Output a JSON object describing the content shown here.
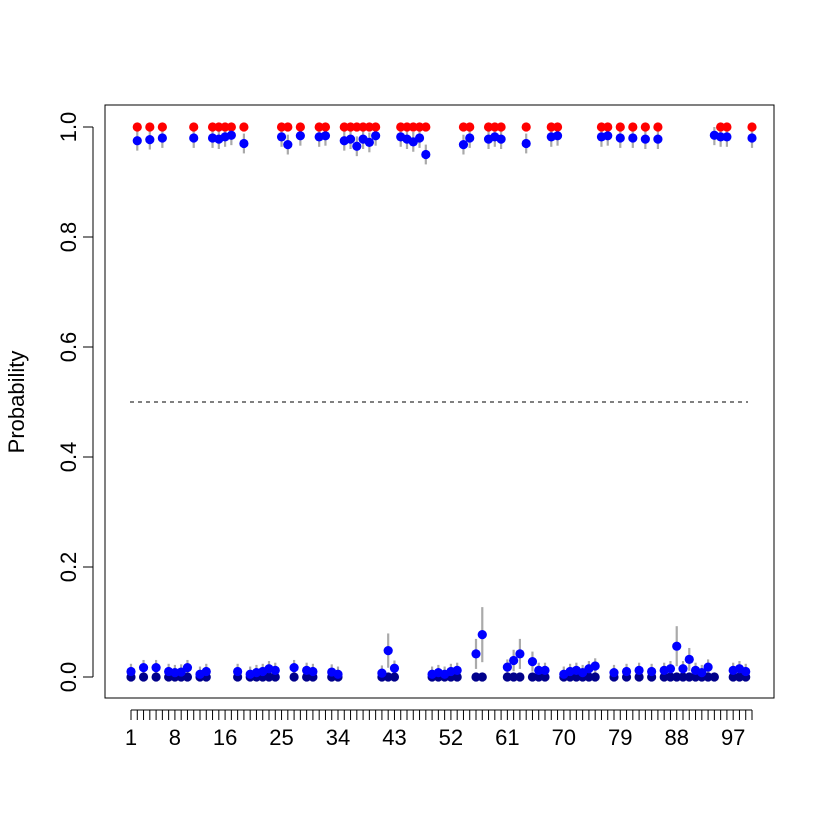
{
  "chart_data": {
    "type": "scatter",
    "title": "",
    "xlabel": "",
    "ylabel": "Probability",
    "xlim": [
      0.5,
      100.5
    ],
    "ylim": [
      -0.04,
      1.04
    ],
    "y_ticks": [
      0.0,
      0.2,
      0.4,
      0.6,
      0.8,
      1.0
    ],
    "y_tick_labels": [
      "0.0",
      "0.2",
      "0.4",
      "0.6",
      "0.8",
      "1.0"
    ],
    "x_tick_positions": [
      1,
      8,
      16,
      25,
      34,
      43,
      52,
      61,
      70,
      79,
      88,
      97
    ],
    "x_tick_labels": [
      "1",
      "8",
      "16",
      "25",
      "34",
      "43",
      "52",
      "61",
      "70",
      "79",
      "88",
      "97"
    ],
    "n_items": 100,
    "threshold": 0.5,
    "grid": false,
    "colors": {
      "truth": "#ff0000",
      "truth_zero": "#00008b",
      "estimate": "#0000ff",
      "interval": "#aaaaaa",
      "threshold_line": "#000000"
    },
    "series": [
      {
        "x": [
          1,
          2,
          3,
          4,
          5,
          6,
          7,
          8,
          9,
          10,
          11,
          12,
          13,
          14,
          15,
          16,
          17,
          18,
          19,
          20,
          21,
          22,
          23,
          24,
          25,
          26,
          27,
          28,
          29,
          30,
          31,
          32,
          33,
          34,
          35,
          36,
          37,
          38,
          39,
          40,
          41,
          42,
          43,
          44,
          45,
          46,
          47,
          48,
          49,
          50,
          51,
          52,
          53,
          54,
          55,
          56,
          57,
          58,
          59,
          60,
          61,
          62,
          63,
          64,
          65,
          66,
          67,
          68,
          69,
          70,
          71,
          72,
          73,
          74,
          75,
          76,
          77,
          78,
          79,
          80,
          81,
          82,
          83,
          84,
          85,
          86,
          87,
          88,
          89,
          90,
          91,
          92,
          93,
          94,
          95,
          96,
          97,
          98,
          99,
          100
        ],
        "truth": [
          0,
          1,
          0,
          1,
          0,
          1,
          0,
          0,
          0,
          0,
          1,
          0,
          0,
          1,
          1,
          1,
          1,
          0,
          1,
          0,
          0,
          0,
          0,
          0,
          1,
          1,
          0,
          1,
          0,
          0,
          1,
          1,
          0,
          0,
          1,
          1,
          1,
          1,
          1,
          1,
          0,
          0,
          0,
          1,
          1,
          1,
          1,
          1,
          0,
          0,
          0,
          0,
          0,
          1,
          1,
          0,
          0,
          1,
          1,
          1,
          0,
          0,
          0,
          1,
          0,
          0,
          0,
          1,
          1,
          0,
          0,
          0,
          0,
          0,
          0,
          1,
          1,
          0,
          1,
          0,
          1,
          0,
          1,
          0,
          1,
          0,
          0,
          0,
          0,
          0,
          0,
          0,
          0,
          0,
          1,
          1,
          0,
          0,
          0,
          1
        ],
        "estimate": [
          0.01,
          0.975,
          0.017,
          0.977,
          0.017,
          0.98,
          0.01,
          0.008,
          0.009,
          0.017,
          0.98,
          0.005,
          0.01,
          0.98,
          0.978,
          0.982,
          0.985,
          0.01,
          0.97,
          0.005,
          0.008,
          0.01,
          0.015,
          0.012,
          0.982,
          0.968,
          0.017,
          0.984,
          0.012,
          0.01,
          0.982,
          0.984,
          0.009,
          0.005,
          0.975,
          0.978,
          0.965,
          0.978,
          0.972,
          0.984,
          0.007,
          0.048,
          0.016,
          0.982,
          0.978,
          0.973,
          0.98,
          0.95,
          0.005,
          0.008,
          0.005,
          0.01,
          0.012,
          0.968,
          0.98,
          0.042,
          0.077,
          0.978,
          0.982,
          0.978,
          0.018,
          0.03,
          0.042,
          0.97,
          0.028,
          0.012,
          0.012,
          0.982,
          0.984,
          0.005,
          0.01,
          0.012,
          0.008,
          0.015,
          0.02,
          0.982,
          0.984,
          0.008,
          0.98,
          0.01,
          0.98,
          0.012,
          0.978,
          0.01,
          0.978,
          0.012,
          0.015,
          0.056,
          0.015,
          0.032,
          0.012,
          0.008,
          0.018,
          0.985,
          0.982,
          0.982,
          0.012,
          0.015,
          0.01,
          0.98
        ]
      }
    ]
  }
}
